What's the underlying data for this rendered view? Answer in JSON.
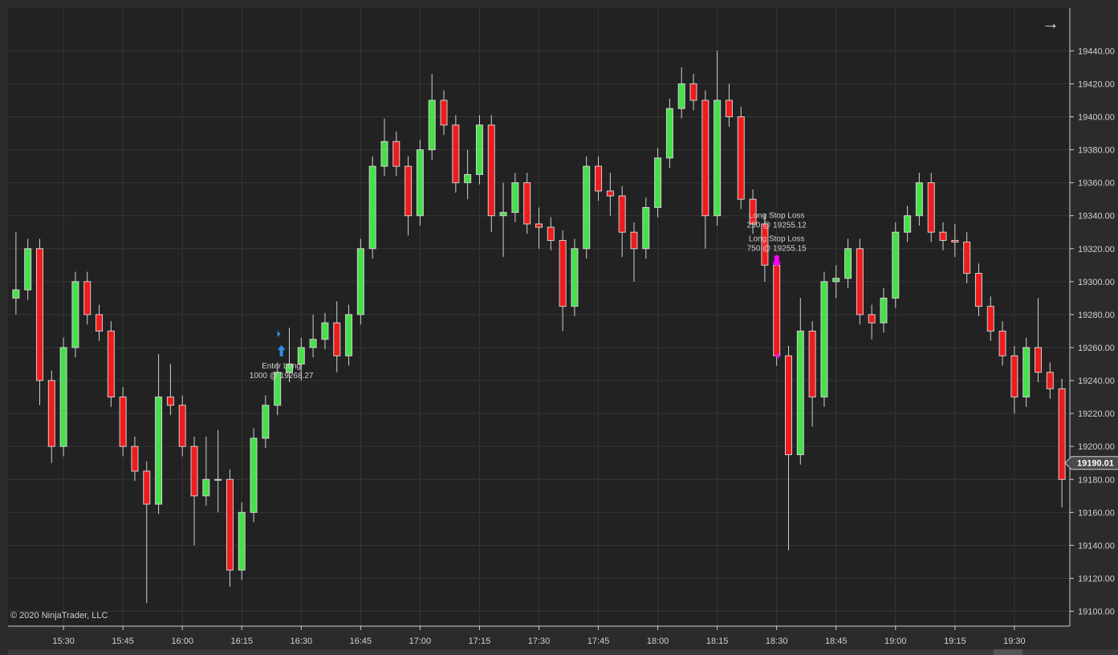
{
  "copyright": "© 2020 NinjaTrader, LLC",
  "nav_icon": "arrow-right-icon",
  "last_price_label": "19190.01",
  "colors": {
    "background": "#222222",
    "grid": "#363636",
    "up": "#46e04a",
    "down": "#ee1c1c",
    "wick": "#d0d0d0",
    "entry": "#2f8fe8",
    "stop": "#ff00ff",
    "axis_text": "#d0d0d0"
  },
  "chart_data": {
    "type": "candlestick",
    "grid": true,
    "x_ticks": [
      "15:30",
      "15:45",
      "16:00",
      "16:15",
      "16:30",
      "16:45",
      "17:00",
      "17:15",
      "17:30",
      "17:45",
      "18:00",
      "18:15",
      "18:30",
      "18:45",
      "19:00",
      "19:15",
      "19:30"
    ],
    "y_ticks": [
      "19100.00",
      "19120.00",
      "19140.00",
      "19160.00",
      "19180.00",
      "19200.00",
      "19220.00",
      "19240.00",
      "19260.00",
      "19280.00",
      "19300.00",
      "19320.00",
      "19340.00",
      "19360.00",
      "19380.00",
      "19400.00",
      "19420.00",
      "19440.00"
    ],
    "ylim": [
      19091,
      19466
    ],
    "xlim": [
      "15:16",
      "19:44"
    ],
    "bar_fields": [
      "time",
      "open",
      "high",
      "low",
      "close"
    ],
    "bars": [
      [
        "15:18",
        19290,
        19330,
        19280,
        19295
      ],
      [
        "15:21",
        19295,
        19326,
        19289,
        19320
      ],
      [
        "15:24",
        19320,
        19326,
        19225,
        19240
      ],
      [
        "15:27",
        19240,
        19246,
        19190,
        19200
      ],
      [
        "15:30",
        19200,
        19266,
        19194,
        19260
      ],
      [
        "15:33",
        19260,
        19306,
        19254,
        19300
      ],
      [
        "15:36",
        19300,
        19306,
        19274,
        19280
      ],
      [
        "15:39",
        19280,
        19286,
        19264,
        19270
      ],
      [
        "15:42",
        19270,
        19276,
        19224,
        19230
      ],
      [
        "15:45",
        19230,
        19236,
        19194,
        19200
      ],
      [
        "15:48",
        19200,
        19206,
        19179,
        19185
      ],
      [
        "15:51",
        19185,
        19191,
        19105,
        19165
      ],
      [
        "15:54",
        19165,
        19256,
        19159,
        19230
      ],
      [
        "15:57",
        19230,
        19250,
        19219,
        19225
      ],
      [
        "16:00",
        19225,
        19231,
        19194,
        19200
      ],
      [
        "16:03",
        19200,
        19206,
        19140,
        19170
      ],
      [
        "16:06",
        19170,
        19206,
        19164,
        19180
      ],
      [
        "16:09",
        19180,
        19210,
        19160,
        19180
      ],
      [
        "16:12",
        19180,
        19186,
        19115,
        19125
      ],
      [
        "16:15",
        19125,
        19166,
        19119,
        19160
      ],
      [
        "16:18",
        19160,
        19211,
        19154,
        19205
      ],
      [
        "16:21",
        19205,
        19231,
        19199,
        19225
      ],
      [
        "16:24",
        19225,
        19251,
        19219,
        19245
      ],
      [
        "16:27",
        19245,
        19272,
        19239,
        19250
      ],
      [
        "16:30",
        19250,
        19266,
        19240,
        19260
      ],
      [
        "16:33",
        19260,
        19280,
        19254,
        19265
      ],
      [
        "16:36",
        19265,
        19281,
        19259,
        19275
      ],
      [
        "16:39",
        19275,
        19288,
        19245,
        19255
      ],
      [
        "16:42",
        19255,
        19286,
        19249,
        19280
      ],
      [
        "16:45",
        19280,
        19326,
        19274,
        19320
      ],
      [
        "16:48",
        19320,
        19376,
        19314,
        19370
      ],
      [
        "16:51",
        19370,
        19399,
        19364,
        19385
      ],
      [
        "16:54",
        19385,
        19391,
        19364,
        19370
      ],
      [
        "16:57",
        19370,
        19376,
        19328,
        19340
      ],
      [
        "17:00",
        19340,
        19386,
        19334,
        19380
      ],
      [
        "17:03",
        19380,
        19426,
        19374,
        19410
      ],
      [
        "17:06",
        19410,
        19416,
        19389,
        19395
      ],
      [
        "17:09",
        19395,
        19401,
        19354,
        19360
      ],
      [
        "17:12",
        19360,
        19380,
        19350,
        19365
      ],
      [
        "17:15",
        19365,
        19401,
        19359,
        19395
      ],
      [
        "17:18",
        19395,
        19401,
        19330,
        19340
      ],
      [
        "17:21",
        19340,
        19360,
        19315,
        19342
      ],
      [
        "17:24",
        19342,
        19366,
        19336,
        19360
      ],
      [
        "17:27",
        19360,
        19366,
        19329,
        19335
      ],
      [
        "17:30",
        19335,
        19345,
        19320,
        19333
      ],
      [
        "17:33",
        19333,
        19339,
        19319,
        19325
      ],
      [
        "17:36",
        19325,
        19331,
        19270,
        19285
      ],
      [
        "17:39",
        19285,
        19326,
        19279,
        19320
      ],
      [
        "17:42",
        19320,
        19376,
        19314,
        19370
      ],
      [
        "17:45",
        19370,
        19376,
        19349,
        19355
      ],
      [
        "17:48",
        19355,
        19366,
        19340,
        19352
      ],
      [
        "17:51",
        19352,
        19358,
        19315,
        19330
      ],
      [
        "17:54",
        19330,
        19336,
        19300,
        19320
      ],
      [
        "17:57",
        19320,
        19351,
        19314,
        19345
      ],
      [
        "18:00",
        19345,
        19381,
        19339,
        19375
      ],
      [
        "18:03",
        19375,
        19411,
        19369,
        19405
      ],
      [
        "18:06",
        19405,
        19430,
        19399,
        19420
      ],
      [
        "18:09",
        19420,
        19426,
        19404,
        19410
      ],
      [
        "18:12",
        19410,
        19416,
        19320,
        19340
      ],
      [
        "18:15",
        19340,
        19440,
        19334,
        19410
      ],
      [
        "18:18",
        19410,
        19420,
        19394,
        19400
      ],
      [
        "18:21",
        19400,
        19406,
        19344,
        19350
      ],
      [
        "18:24",
        19350,
        19356,
        19329,
        19335
      ],
      [
        "18:27",
        19335,
        19341,
        19300,
        19310
      ],
      [
        "18:30",
        19310,
        19316,
        19249,
        19255
      ],
      [
        "18:33",
        19255,
        19261,
        19137,
        19195
      ],
      [
        "18:36",
        19195,
        19290,
        19189,
        19270
      ],
      [
        "18:39",
        19270,
        19276,
        19212,
        19230
      ],
      [
        "18:42",
        19230,
        19306,
        19224,
        19300
      ],
      [
        "18:45",
        19300,
        19310,
        19290,
        19302
      ],
      [
        "18:48",
        19302,
        19326,
        19296,
        19320
      ],
      [
        "18:51",
        19320,
        19326,
        19274,
        19280
      ],
      [
        "18:54",
        19280,
        19286,
        19265,
        19275
      ],
      [
        "18:57",
        19275,
        19296,
        19269,
        19290
      ],
      [
        "19:00",
        19290,
        19336,
        19284,
        19330
      ],
      [
        "19:03",
        19330,
        19346,
        19324,
        19340
      ],
      [
        "19:06",
        19340,
        19366,
        19334,
        19360
      ],
      [
        "19:09",
        19360,
        19366,
        19324,
        19330
      ],
      [
        "19:12",
        19330,
        19336,
        19319,
        19325
      ],
      [
        "19:15",
        19325,
        19335,
        19315,
        19324
      ],
      [
        "19:18",
        19324,
        19330,
        19299,
        19305
      ],
      [
        "19:21",
        19305,
        19311,
        19279,
        19285
      ],
      [
        "19:24",
        19285,
        19291,
        19264,
        19270
      ],
      [
        "19:27",
        19270,
        19276,
        19249,
        19255
      ],
      [
        "19:30",
        19255,
        19261,
        19220,
        19230
      ],
      [
        "19:33",
        19230,
        19266,
        19224,
        19260
      ],
      [
        "19:36",
        19260,
        19290,
        19239,
        19245
      ],
      [
        "19:39",
        19245,
        19251,
        19229,
        19235
      ],
      [
        "19:42",
        19235,
        19241,
        19163,
        19180
      ]
    ],
    "last_price": 19190.01,
    "executions": [
      {
        "kind": "entry",
        "time": "16:25",
        "price": 19268.27,
        "label": "Enter Long",
        "detail": "1000 @ 19268.27"
      },
      {
        "kind": "stop",
        "time": "18:30",
        "price": 19255.12,
        "label": "Long Stop Loss",
        "detail": "250 @ 19255.12"
      },
      {
        "kind": "stop",
        "time": "18:30",
        "price": 19255.15,
        "label": "Long Stop Loss",
        "detail": "750 @ 19255.15"
      }
    ]
  }
}
